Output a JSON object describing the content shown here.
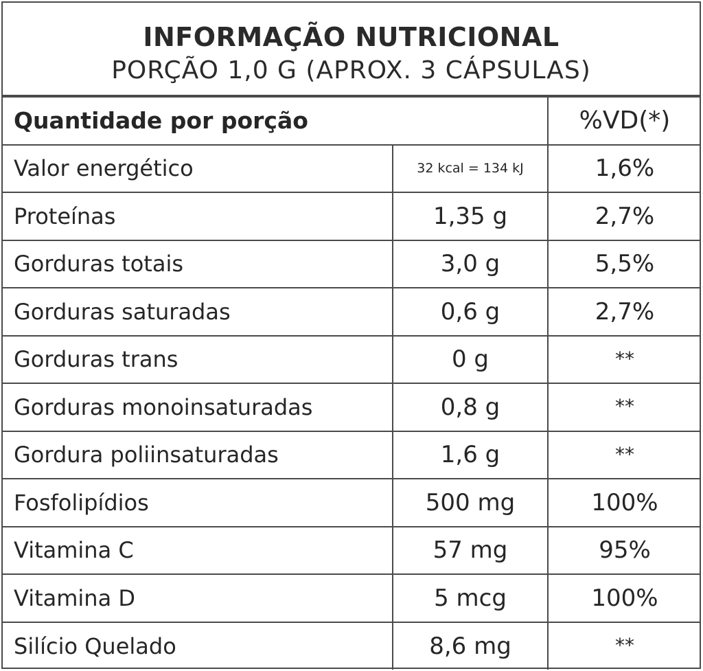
{
  "header": {
    "title": "INFORMAÇÃO NUTRICIONAL",
    "subtitle": "PORÇÃO 1,0 G (APROX. 3 CÁPSULAS)"
  },
  "table": {
    "header_quantity": "Quantidade por porção",
    "header_vd": "%VD(*)",
    "rows": [
      {
        "name": "Valor energético",
        "amount": "32 kcal = 134 kJ",
        "vd": "1,6%"
      },
      {
        "name": "Proteínas",
        "amount": "1,35 g",
        "vd": "2,7%"
      },
      {
        "name": "Gorduras totais",
        "amount": "3,0 g",
        "vd": "5,5%"
      },
      {
        "name": "Gorduras saturadas",
        "amount": "0,6 g",
        "vd": "2,7%"
      },
      {
        "name": "Gorduras trans",
        "amount": "0 g",
        "vd": "**"
      },
      {
        "name": "Gorduras monoinsaturadas",
        "amount": "0,8 g",
        "vd": "**"
      },
      {
        "name": "Gordura poliinsaturadas",
        "amount": "1,6 g",
        "vd": "**"
      },
      {
        "name": "Fosfolipídios",
        "amount": "500 mg",
        "vd": "100%"
      },
      {
        "name": "Vitamina C",
        "amount": "57 mg",
        "vd": "95%"
      },
      {
        "name": "Vitamina D",
        "amount": "5 mcg",
        "vd": "100%"
      },
      {
        "name": "Silício Quelado",
        "amount": "8,6 mg",
        "vd": "**"
      }
    ]
  }
}
